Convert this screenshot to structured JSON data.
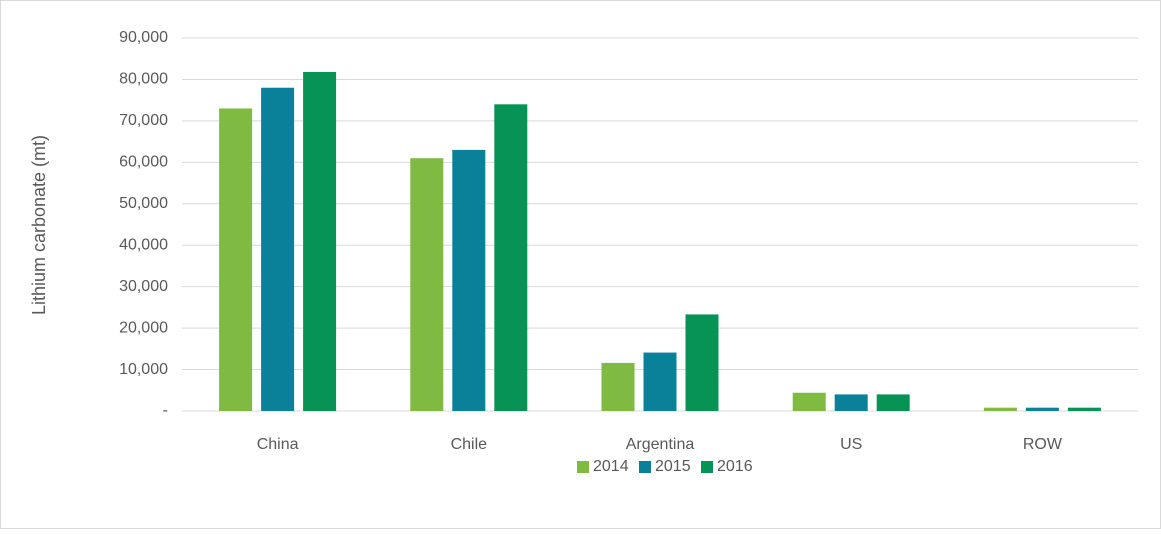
{
  "chart_data": {
    "type": "bar",
    "y_label": "Lithium carbonate (mt)",
    "categories": [
      "China",
      "Chile",
      "Argentina",
      "US",
      "ROW"
    ],
    "series": [
      {
        "name": "2014",
        "color": "#7fba42",
        "values": [
          73000,
          61000,
          11600,
          4400,
          800
        ]
      },
      {
        "name": "2015",
        "color": "#0a8199",
        "values": [
          78000,
          63000,
          14100,
          4000,
          800
        ]
      },
      {
        "name": "2016",
        "color": "#089356",
        "values": [
          81800,
          74000,
          23300,
          4000,
          800
        ]
      }
    ],
    "ylim": [
      0,
      90000
    ],
    "yticks": [
      {
        "value": 0,
        "label": "-"
      },
      {
        "value": 10000,
        "label": "10,000"
      },
      {
        "value": 20000,
        "label": "20,000"
      },
      {
        "value": 30000,
        "label": "30,000"
      },
      {
        "value": 40000,
        "label": "40,000"
      },
      {
        "value": 50000,
        "label": "50,000"
      },
      {
        "value": 60000,
        "label": "60,000"
      },
      {
        "value": 70000,
        "label": "70,000"
      },
      {
        "value": 80000,
        "label": "80,000"
      },
      {
        "value": 90000,
        "label": "90,000"
      }
    ],
    "grid": true,
    "legend": "bottom"
  }
}
